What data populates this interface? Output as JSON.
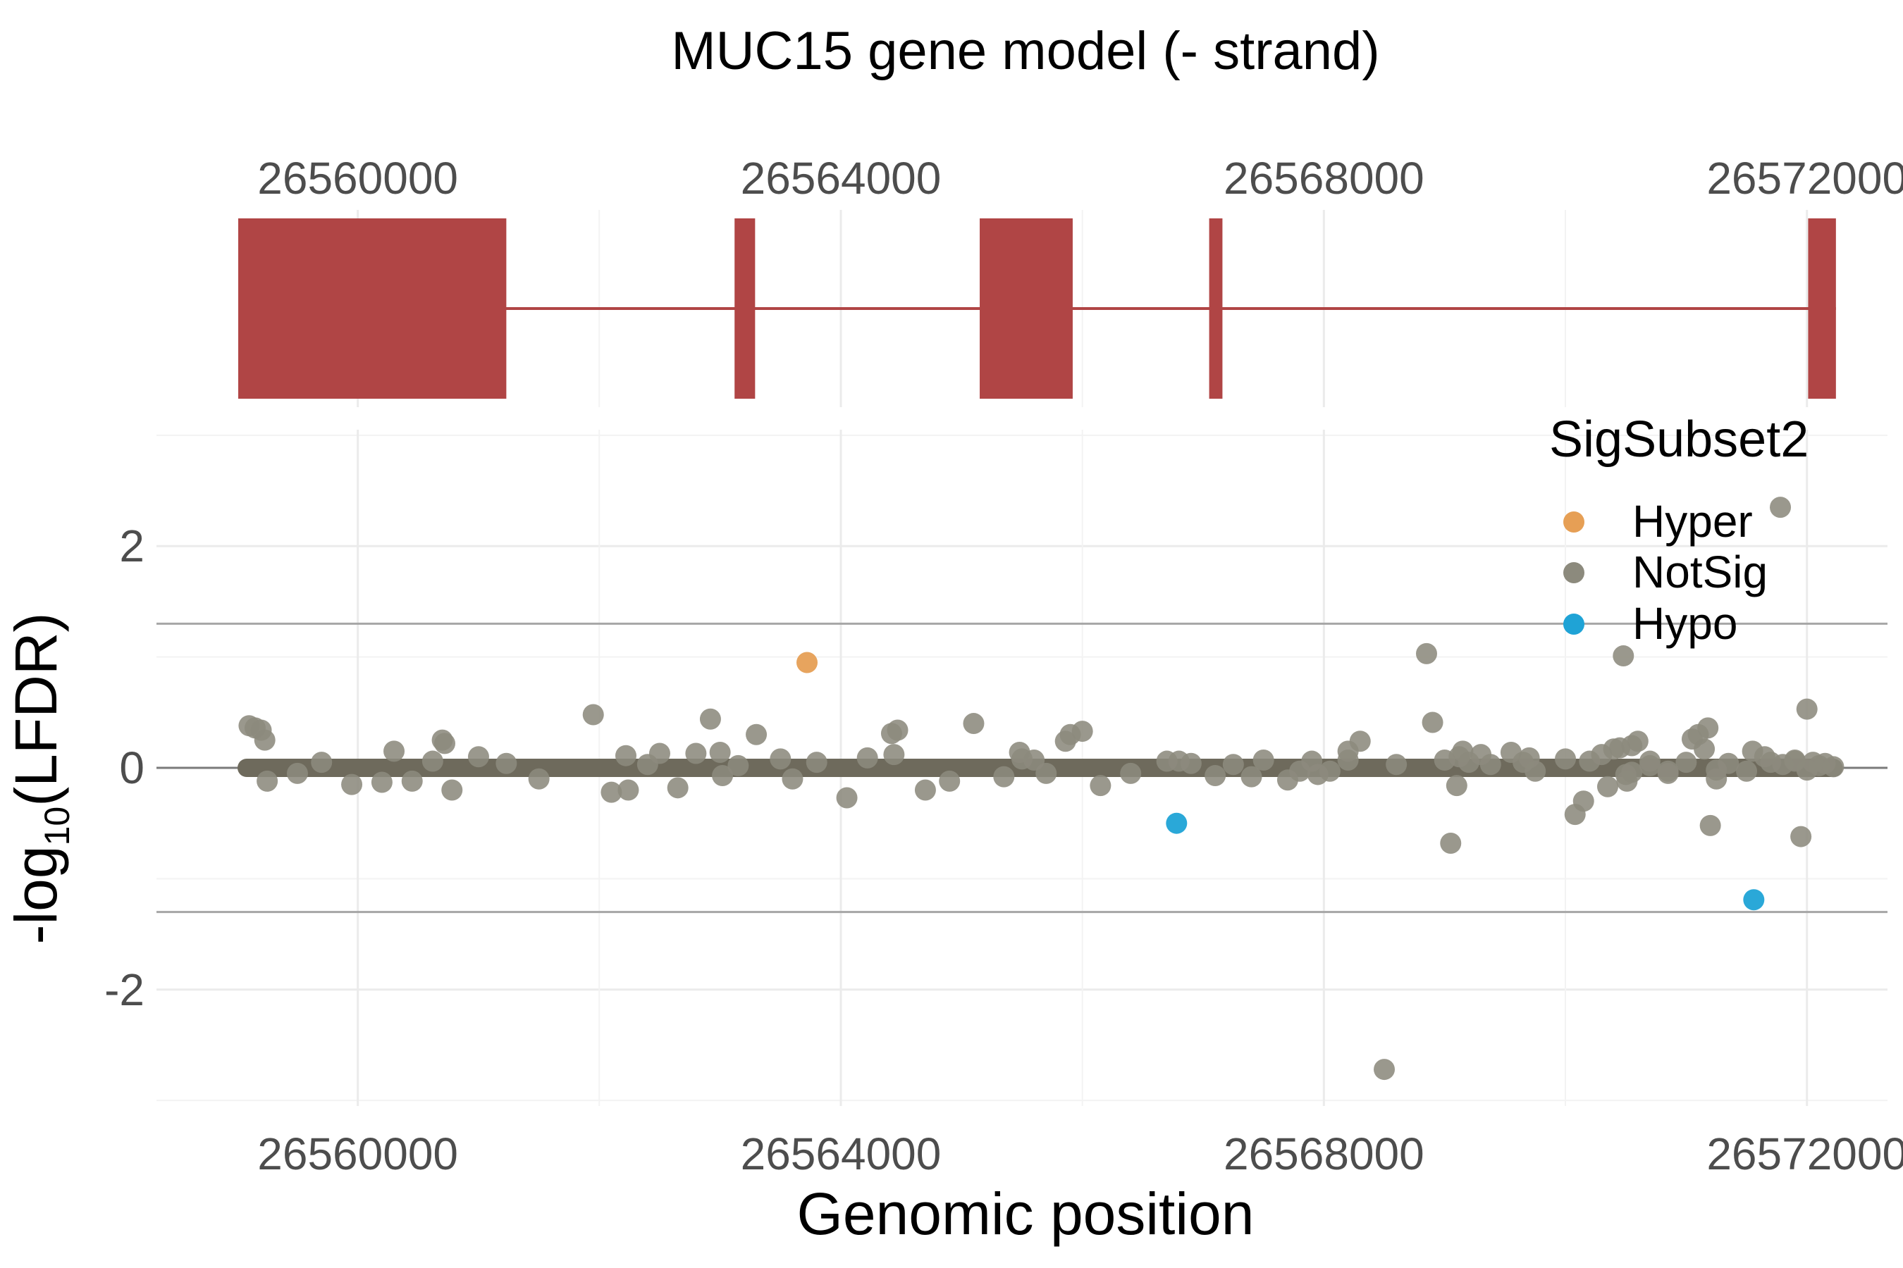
{
  "title": "MUC15 gene model (- strand)",
  "xlabel": "Genomic position",
  "ylabel": "-log10(LFDR)",
  "legend": {
    "title": "SigSubset2",
    "items": [
      {
        "label": "Hyper",
        "color": "#E69F55"
      },
      {
        "label": "NotSig",
        "color": "#8C8A7D"
      },
      {
        "label": "Hypo",
        "color": "#1FA3D6"
      }
    ]
  },
  "chart_data": [
    {
      "type": "gene-model",
      "title": "MUC15 gene model (- strand)",
      "xlim": [
        26558333,
        26572667
      ],
      "x_ticks": [
        "26560000",
        "26564000",
        "26568000",
        "26572000"
      ],
      "color": "#B04545",
      "exons": [
        {
          "start": 26559010,
          "end": 26561230
        },
        {
          "start": 26563120,
          "end": 26563290
        },
        {
          "start": 26565150,
          "end": 26565920
        },
        {
          "start": 26567050,
          "end": 26567160
        },
        {
          "start": 26572010,
          "end": 26572240
        }
      ],
      "intron_span": [
        26559010,
        26572240
      ]
    },
    {
      "type": "scatter",
      "xlabel": "Genomic position",
      "ylabel": "-log10(LFDR)",
      "xlim": [
        26558333,
        26572667
      ],
      "ylim": [
        -3.05,
        3.05
      ],
      "x_ticks": [
        "26560000",
        "26564000",
        "26568000",
        "26572000"
      ],
      "y_ticks": [
        "-2",
        "0",
        "2"
      ],
      "hlines": [
        1.3,
        -1.3
      ],
      "zero_line": 0,
      "baseline": {
        "from": 26559080,
        "to": 26572220,
        "y": 0,
        "color": "#6E6A5C"
      },
      "grid": true,
      "legend_position": "top-right",
      "series": [
        {
          "name": "Hyper",
          "color": "#E69F55",
          "points": [
            [
              26563720,
              0.95
            ]
          ]
        },
        {
          "name": "NotSig",
          "color": "#8C8A7D",
          "points": [
            [
              26559100,
              0.38
            ],
            [
              26559150,
              0.36
            ],
            [
              26559200,
              0.34
            ],
            [
              26559230,
              0.25
            ],
            [
              26559250,
              -0.12
            ],
            [
              26559500,
              -0.05
            ],
            [
              26559700,
              0.05
            ],
            [
              26559950,
              -0.15
            ],
            [
              26560200,
              -0.13
            ],
            [
              26560300,
              0.15
            ],
            [
              26560450,
              -0.12
            ],
            [
              26560620,
              0.06
            ],
            [
              26560700,
              0.25
            ],
            [
              26560720,
              0.22
            ],
            [
              26560780,
              -0.2
            ],
            [
              26561000,
              0.1
            ],
            [
              26561230,
              0.04
            ],
            [
              26561500,
              -0.1
            ],
            [
              26561950,
              0.48
            ],
            [
              26562100,
              -0.22
            ],
            [
              26562220,
              0.11
            ],
            [
              26562240,
              -0.2
            ],
            [
              26562400,
              0.03
            ],
            [
              26562500,
              0.13
            ],
            [
              26562650,
              -0.18
            ],
            [
              26562800,
              0.13
            ],
            [
              26562920,
              0.44
            ],
            [
              26563000,
              0.14
            ],
            [
              26563020,
              -0.07
            ],
            [
              26563150,
              0.02
            ],
            [
              26563300,
              0.3
            ],
            [
              26563500,
              0.08
            ],
            [
              26563600,
              -0.1
            ],
            [
              26563800,
              0.05
            ],
            [
              26564050,
              -0.27
            ],
            [
              26564220,
              0.09
            ],
            [
              26564440,
              0.12
            ],
            [
              26564700,
              -0.2
            ],
            [
              26564900,
              -0.12
            ],
            [
              26565100,
              0.4
            ],
            [
              26565350,
              -0.08
            ],
            [
              26565480,
              0.14
            ],
            [
              26565500,
              0.08
            ],
            [
              26565600,
              0.07
            ],
            [
              26565700,
              -0.05
            ],
            [
              26565860,
              0.24
            ],
            [
              26565900,
              0.3
            ],
            [
              26566000,
              0.33
            ],
            [
              26566400,
              -0.05
            ],
            [
              26566800,
              0.06
            ],
            [
              26567100,
              -0.07
            ],
            [
              26567250,
              0.03
            ],
            [
              26567500,
              0.07
            ],
            [
              26567700,
              -0.11
            ],
            [
              26567800,
              -0.03
            ],
            [
              26567900,
              0.06
            ],
            [
              26568300,
              0.24
            ],
            [
              26568850,
              1.03
            ],
            [
              26568900,
              0.41
            ],
            [
              26569000,
              0.07
            ],
            [
              26569050,
              -0.68
            ],
            [
              26569100,
              -0.16
            ],
            [
              26569150,
              0.15
            ],
            [
              26569300,
              0.12
            ],
            [
              26569550,
              0.14
            ],
            [
              26569650,
              0.05
            ],
            [
              26570300,
              0.12
            ],
            [
              26570500,
              -0.06
            ],
            [
              26570550,
              0.2
            ],
            [
              26570600,
              0.24
            ],
            [
              26570700,
              0.06
            ],
            [
              26570850,
              -0.05
            ],
            [
              26571000,
              0.05
            ],
            [
              26571150,
              0.17
            ],
            [
              26571250,
              -0.1
            ],
            [
              26571350,
              0.04
            ],
            [
              26571500,
              -0.03
            ],
            [
              26571650,
              0.1
            ],
            [
              26571700,
              0.05
            ],
            [
              26571800,
              0.03
            ],
            [
              26571900,
              0.06
            ],
            [
              26572000,
              -0.02
            ],
            [
              26572050,
              0.05
            ],
            [
              26572100,
              0.02
            ],
            [
              26572150,
              0.04
            ],
            [
              26572220,
              0.01
            ],
            [
              26564420,
              0.31
            ],
            [
              26564470,
              0.34
            ],
            [
              26566150,
              -0.16
            ],
            [
              26566700,
              0.06
            ],
            [
              26566900,
              0.04
            ],
            [
              26567400,
              -0.08
            ],
            [
              26568200,
              0.07
            ],
            [
              26568600,
              0.03
            ],
            [
              26569700,
              0.09
            ],
            [
              26569750,
              -0.03
            ],
            [
              26570550,
              -0.04
            ],
            [
              26570700,
              0.02
            ],
            [
              26568500,
              -2.72
            ],
            [
              26568200,
              0.15
            ],
            [
              26568050,
              -0.03
            ],
            [
              26567950,
              -0.06
            ],
            [
              26569120,
              0.1
            ],
            [
              26569200,
              0.05
            ],
            [
              26569380,
              0.03
            ],
            [
              26570000,
              0.08
            ],
            [
              26570080,
              -0.42
            ],
            [
              26570150,
              -0.3
            ],
            [
              26570200,
              0.06
            ],
            [
              26570350,
              -0.17
            ],
            [
              26570400,
              0.17
            ],
            [
              26570450,
              0.18
            ],
            [
              26570480,
              1.01
            ],
            [
              26570510,
              -0.12
            ],
            [
              26570850,
              -0.03
            ],
            [
              26571050,
              0.26
            ],
            [
              26571100,
              0.3
            ],
            [
              26571180,
              0.36
            ],
            [
              26571200,
              -0.52
            ],
            [
              26571250,
              -0.02
            ],
            [
              26571550,
              0.15
            ],
            [
              26571900,
              0.07
            ],
            [
              26571950,
              -0.62
            ],
            [
              26572000,
              0.53
            ],
            [
              26571780,
              2.35
            ]
          ]
        },
        {
          "name": "Hypo",
          "color": "#1FA3D6",
          "points": [
            [
              26566780,
              -0.5
            ],
            [
              26571560,
              -1.19
            ]
          ]
        }
      ]
    }
  ]
}
